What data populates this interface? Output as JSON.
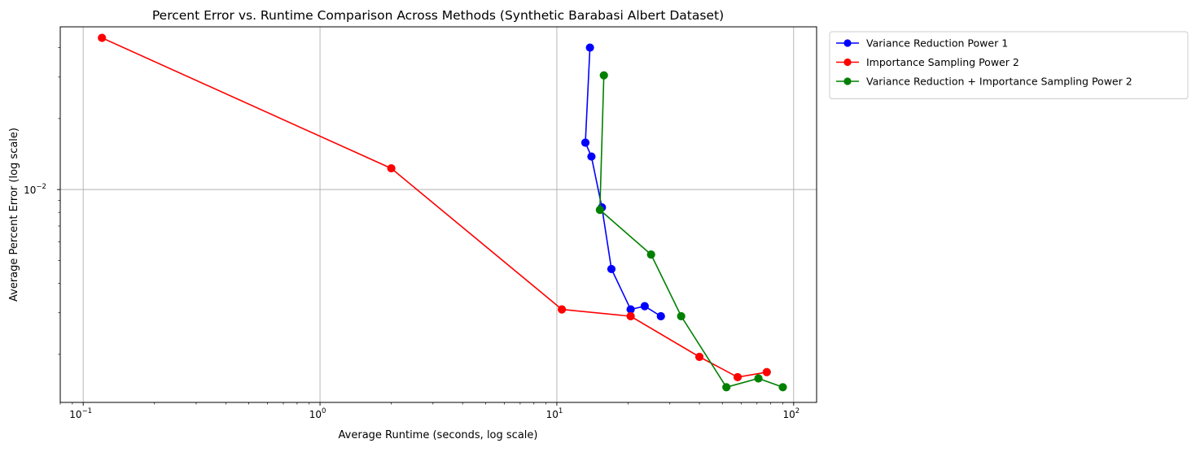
{
  "chart_data": {
    "type": "line",
    "title": "Percent Error vs. Runtime Comparison Across Methods (Synthetic Barabasi Albert Dataset)",
    "xlabel": "Average Runtime (seconds, log scale)",
    "ylabel": "Average Percent Error (log scale)",
    "xscale": "log",
    "yscale": "log",
    "xlim": [
      0.08,
      125
    ],
    "ylim": [
      0.00125,
      0.049
    ],
    "xticks": [
      {
        "value": 0.1,
        "base": "10",
        "exp": "−1"
      },
      {
        "value": 1,
        "base": "10",
        "exp": "0"
      },
      {
        "value": 10,
        "base": "10",
        "exp": "1"
      },
      {
        "value": 100,
        "base": "10",
        "exp": "2"
      }
    ],
    "yticks": [
      {
        "value": 0.01,
        "base": "10",
        "exp": "−2"
      }
    ],
    "grid": true,
    "legend_position": "outside-upper-right",
    "series": [
      {
        "name": "Variance Reduction Power 1",
        "color": "#0000ff",
        "marker": "circle",
        "points": [
          {
            "x": 13.8,
            "y": 0.04
          },
          {
            "x": 13.2,
            "y": 0.0158
          },
          {
            "x": 14.0,
            "y": 0.0138
          },
          {
            "x": 15.5,
            "y": 0.0084
          },
          {
            "x": 17.0,
            "y": 0.0046
          },
          {
            "x": 20.5,
            "y": 0.0031
          },
          {
            "x": 23.5,
            "y": 0.0032
          },
          {
            "x": 27.5,
            "y": 0.0029
          }
        ]
      },
      {
        "name": "Importance Sampling Power 2",
        "color": "#ff0000",
        "marker": "circle",
        "points": [
          {
            "x": 0.12,
            "y": 0.044
          },
          {
            "x": 2.0,
            "y": 0.0123
          },
          {
            "x": 10.5,
            "y": 0.0031
          },
          {
            "x": 20.5,
            "y": 0.0029
          },
          {
            "x": 40.0,
            "y": 0.00195
          },
          {
            "x": 58.0,
            "y": 0.0016
          },
          {
            "x": 77.0,
            "y": 0.00168
          }
        ]
      },
      {
        "name": "Variance Reduction + Importance Sampling Power 2",
        "color": "#008000",
        "marker": "circle",
        "points": [
          {
            "x": 15.8,
            "y": 0.0305
          },
          {
            "x": 15.2,
            "y": 0.0082
          },
          {
            "x": 25.0,
            "y": 0.0053
          },
          {
            "x": 33.5,
            "y": 0.0029
          },
          {
            "x": 52.0,
            "y": 0.00145
          },
          {
            "x": 71.0,
            "y": 0.00158
          },
          {
            "x": 90.0,
            "y": 0.00145
          }
        ]
      }
    ]
  }
}
